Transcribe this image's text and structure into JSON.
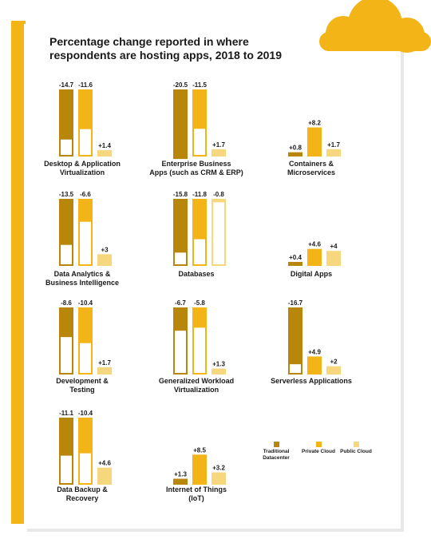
{
  "title": "Percentage change reported in where respondents are hosting apps, 2018 to 2019",
  "colors": {
    "traditional": "#b8860b",
    "private": "#f2b417",
    "public": "#f7d77e",
    "accent": "#f2b417"
  },
  "legend": [
    {
      "label": "Traditional Datacenter",
      "color": "#b8860b"
    },
    {
      "label": "Private Cloud",
      "color": "#f2b417"
    },
    {
      "label": "Public Cloud",
      "color": "#f7d77e"
    }
  ],
  "chart_data": [
    {
      "type": "bar",
      "title": "Desktop & Application\nVirtualization",
      "series": [
        {
          "values": [
            14.7
          ],
          "sign": "-"
        },
        {
          "values": [
            11.6
          ],
          "sign": "-"
        },
        {
          "values": [
            1.4
          ],
          "sign": "+"
        }
      ]
    },
    {
      "type": "bar",
      "title": "Enterprise Business\nApps (such as CRM & ERP)",
      "series": [
        {
          "values": [
            20.5
          ],
          "sign": "-"
        },
        {
          "values": [
            11.5
          ],
          "sign": "-"
        },
        {
          "values": [
            1.7
          ],
          "sign": "+"
        }
      ]
    },
    {
      "type": "bar",
      "title": "Containers &\nMicroservices",
      "series": [
        {
          "values": [
            0.8
          ],
          "sign": "+"
        },
        {
          "values": [
            8.2
          ],
          "sign": "+"
        },
        {
          "values": [
            1.7
          ],
          "sign": "+"
        }
      ]
    },
    {
      "type": "bar",
      "title": "Data Analytics &\nBusiness Intelligence",
      "series": [
        {
          "values": [
            13.5
          ],
          "sign": "-"
        },
        {
          "values": [
            6.6
          ],
          "sign": "-"
        },
        {
          "values": [
            3
          ],
          "sign": "+"
        }
      ]
    },
    {
      "type": "bar",
      "title": "Databases",
      "series": [
        {
          "values": [
            15.8
          ],
          "sign": "-"
        },
        {
          "values": [
            11.8
          ],
          "sign": "-"
        },
        {
          "values": [
            0.8
          ],
          "sign": "-"
        }
      ]
    },
    {
      "type": "bar",
      "title": "Digital Apps",
      "series": [
        {
          "values": [
            0.4
          ],
          "sign": "+"
        },
        {
          "values": [
            4.6
          ],
          "sign": "+"
        },
        {
          "values": [
            4
          ],
          "sign": "+"
        }
      ]
    },
    {
      "type": "bar",
      "title": "Development &\nTesting",
      "series": [
        {
          "values": [
            8.6
          ],
          "sign": "-"
        },
        {
          "values": [
            10.4
          ],
          "sign": "-"
        },
        {
          "values": [
            1.7
          ],
          "sign": "+"
        }
      ]
    },
    {
      "type": "bar",
      "title": "Generalized Workload\nVirtualization",
      "series": [
        {
          "values": [
            6.7
          ],
          "sign": "-"
        },
        {
          "values": [
            5.8
          ],
          "sign": "-"
        },
        {
          "values": [
            1.3
          ],
          "sign": "+"
        }
      ]
    },
    {
      "type": "bar",
      "title": "Serverless Applications",
      "series": [
        {
          "values": [
            16.7
          ],
          "sign": "-"
        },
        {
          "values": [
            4.9
          ],
          "sign": "+"
        },
        {
          "values": [
            2
          ],
          "sign": "+"
        }
      ]
    },
    {
      "type": "bar",
      "title": "Data Backup &\nRecovery",
      "series": [
        {
          "values": [
            11.1
          ],
          "sign": "-"
        },
        {
          "values": [
            10.4
          ],
          "sign": "-"
        },
        {
          "values": [
            4.6
          ],
          "sign": "+"
        }
      ]
    },
    {
      "type": "bar",
      "title": "Internet of Things\n(IoT)",
      "series": [
        {
          "values": [
            1.3
          ],
          "sign": "+"
        },
        {
          "values": [
            8.5
          ],
          "sign": "+"
        },
        {
          "values": [
            3.2
          ],
          "sign": "+"
        }
      ]
    }
  ]
}
